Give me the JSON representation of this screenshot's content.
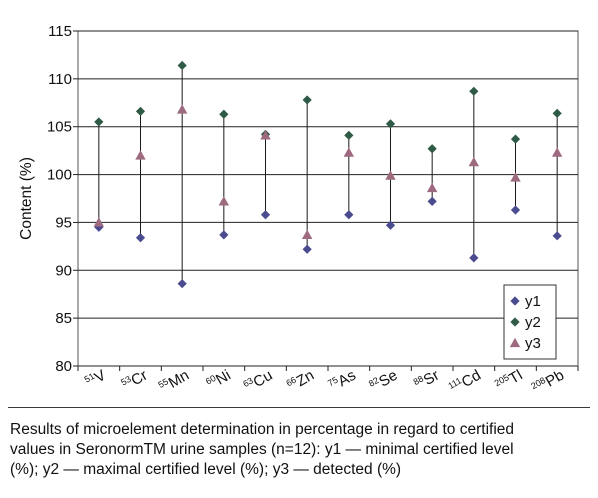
{
  "chart_data": {
    "type": "scatter",
    "title": "",
    "xlabel": "",
    "ylabel": "Content (%)",
    "ylim": [
      80,
      115
    ],
    "yticks": [
      80,
      85,
      90,
      95,
      100,
      105,
      110,
      115
    ],
    "grid": true,
    "legend_position": "bottom-right",
    "categories": [
      {
        "mass": "51",
        "symbol": "V"
      },
      {
        "mass": "53",
        "symbol": "Cr"
      },
      {
        "mass": "55",
        "symbol": "Mn"
      },
      {
        "mass": "60",
        "symbol": "Ni"
      },
      {
        "mass": "63",
        "symbol": "Cu"
      },
      {
        "mass": "66",
        "symbol": "Zn"
      },
      {
        "mass": "75",
        "symbol": "As"
      },
      {
        "mass": "82",
        "symbol": "Se"
      },
      {
        "mass": "88",
        "symbol": "Sr"
      },
      {
        "mass": "111",
        "symbol": "Cd"
      },
      {
        "mass": "205",
        "symbol": "Tl"
      },
      {
        "mass": "208",
        "symbol": "Pb"
      }
    ],
    "series": [
      {
        "name": "y1",
        "marker": "diamond",
        "color": "#4b4b8f",
        "values": [
          94.5,
          93.4,
          88.6,
          93.7,
          95.8,
          92.2,
          95.8,
          94.7,
          97.2,
          91.3,
          96.3,
          93.6
        ]
      },
      {
        "name": "y2",
        "marker": "diamond",
        "color": "#2f5a45",
        "values": [
          105.5,
          106.6,
          111.4,
          106.3,
          104.2,
          107.8,
          104.1,
          105.3,
          102.7,
          108.7,
          103.7,
          106.4
        ]
      },
      {
        "name": "y3",
        "marker": "triangle",
        "color": "#9e6a7f",
        "values": [
          95.0,
          102.0,
          106.8,
          97.2,
          104.1,
          93.7,
          102.3,
          99.9,
          98.6,
          101.3,
          99.7,
          102.3
        ]
      }
    ]
  },
  "caption": {
    "line1": "Results of microelement determination in percentage in regard to certified",
    "line2": "values in SeronormTM urine samples (n=12): y1 — minimal certified level",
    "line3": "(%); y2 — maximal certified level (%); y3 — detected (%)"
  }
}
